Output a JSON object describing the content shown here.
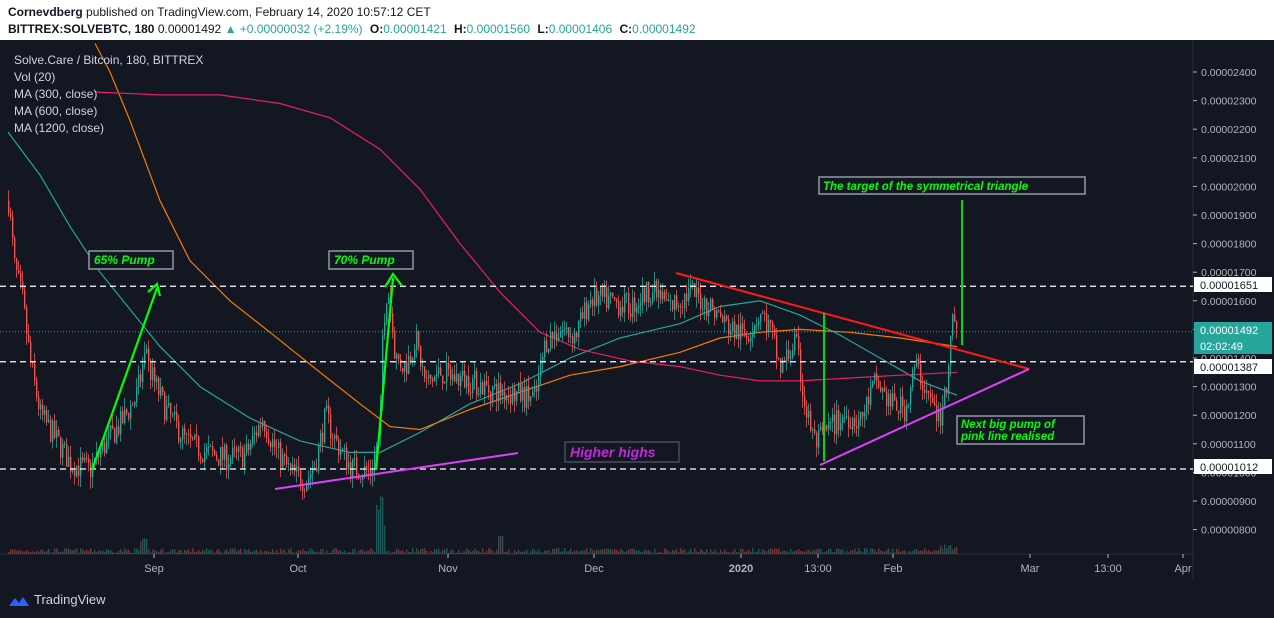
{
  "header": {
    "author": "Cornevdberg",
    "published_text": "published on TradingView.com, February 14, 2020 10:57:12 CET",
    "symbol": "BITTREX:SOLVEBTC, 180",
    "last_price": "0.00001492",
    "change": "▲ +0.00000032 (+2.19%)",
    "o_label": "O:",
    "o_value": "0.00001421",
    "h_label": "H:",
    "h_value": "0.00001560",
    "l_label": "L:",
    "l_value": "0.00001406",
    "c_label": "C:",
    "c_value": "0.00001492"
  },
  "legend": [
    "Solve.Care / Bitcoin, 180, BITTREX",
    "Vol (20)",
    "MA (300, close)",
    "MA (600, close)",
    "MA (1200, close)"
  ],
  "footer": {
    "brand": "TradingView"
  },
  "chart_data": {
    "type": "candlestick",
    "title": "Solve.Care / Bitcoin, 180, BITTREX",
    "x_ticks": [
      "Sep",
      "Oct",
      "Nov",
      "Dec",
      "2020",
      "13:00",
      "Feb",
      "Mar",
      "13:00",
      "Apr"
    ],
    "y_ticks": [
      "0.00002400",
      "0.00002300",
      "0.00002200",
      "0.00002100",
      "0.00002000",
      "0.00001900",
      "0.00001800",
      "0.00001700",
      "0.00001600",
      "0.00001500",
      "0.00001400",
      "0.00001300",
      "0.00001200",
      "0.00001100",
      "0.00001000",
      "0.00000900",
      "0.00000800"
    ],
    "ylim": [
      7.5e-06,
      2.5e-05
    ],
    "price_labels": {
      "resistance": "0.00001651",
      "current": "0.00001492",
      "countdown": "02:02:49",
      "mid": "0.00001387",
      "support": "0.00001012"
    },
    "horizontal_levels": [
      1.651e-05,
      1.387e-05,
      1.012e-05
    ],
    "annotations": [
      {
        "text": "65% Pump",
        "color": "#00ff00"
      },
      {
        "text": "70% Pump",
        "color": "#00ff00"
      },
      {
        "text": "Higher highs",
        "color": "#c02ad8"
      },
      {
        "text": "The target of the symmetrical triangle",
        "color": "#00ff00"
      },
      {
        "text": "Next big pump of",
        "color": "#00ff00"
      },
      {
        "text": "pink line realised",
        "color": "#00ff00"
      }
    ],
    "moving_averages": [
      {
        "name": "MA (300, close)",
        "color": "#26a69a"
      },
      {
        "name": "MA (600, close)",
        "color": "#f57c00"
      },
      {
        "name": "MA (1200, close)",
        "color": "#e91e63"
      }
    ],
    "grid": false,
    "colors": {
      "background": "#131722",
      "up": "#26a69a",
      "down": "#ef5350",
      "axis_text": "#b2b5be"
    }
  }
}
